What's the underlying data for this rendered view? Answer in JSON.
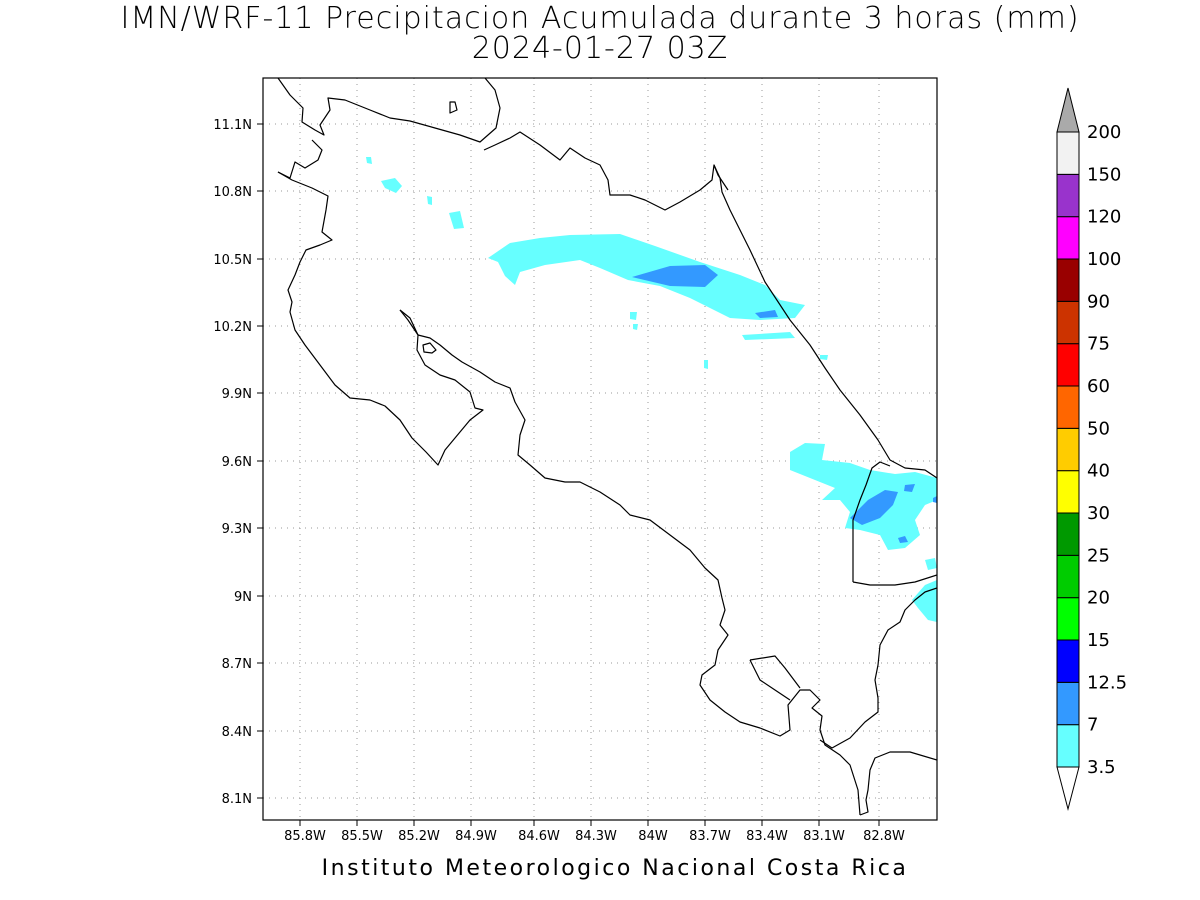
{
  "title_line1": "IMN/WRF-11 Precipitacion Acumulada durante 3 horas (mm)",
  "title_line2": "2024-01-27 03Z",
  "footer": "Instituto Meteorologico Nacional Costa Rica",
  "lat_ticks": [
    "11.1N",
    "10.8N",
    "10.5N",
    "10.2N",
    "9.9N",
    "9.6N",
    "9.3N",
    "9N",
    "8.7N",
    "8.4N",
    "8.1N"
  ],
  "lon_ticks": [
    "85.8W",
    "85.5W",
    "85.2W",
    "84.9W",
    "84.6W",
    "84.3W",
    "84W",
    "83.7W",
    "83.4W",
    "83.1W",
    "82.8W"
  ],
  "colorbar": {
    "labels": [
      "3.5",
      "7",
      "12.5",
      "15",
      "20",
      "25",
      "30",
      "40",
      "50",
      "60",
      "75",
      "90",
      "100",
      "120",
      "150",
      "200"
    ],
    "colors": [
      "#66ffff",
      "#3399ff",
      "#0000ff",
      "#00ff00",
      "#00cc00",
      "#009900",
      "#ffff00",
      "#ffcc00",
      "#ff6600",
      "#ff0000",
      "#cc3300",
      "#990000",
      "#ff00ff",
      "#9933cc",
      "#f2f2f2"
    ],
    "top_arrow_color": "#aaaaaa",
    "bottom_arrow_color": "#ffffff"
  },
  "chart_data": {
    "type": "map",
    "variable": "Precipitacion Acumulada durante 3 horas (mm)",
    "lon_range": [
      -85.95,
      -82.55
    ],
    "lat_range": [
      8.0,
      11.3
    ],
    "grid": true
  }
}
